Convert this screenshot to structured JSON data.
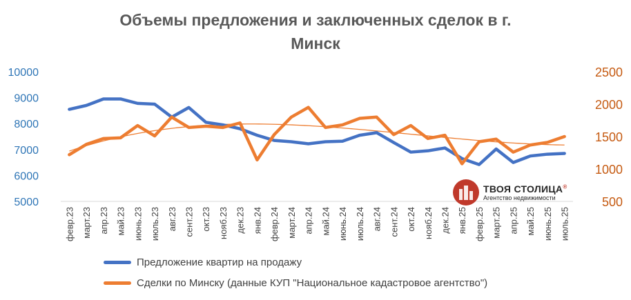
{
  "chart_data": {
    "type": "line",
    "title_line1": "Объемы предложения и заключенных сделок в г.",
    "title_line2": "Минск",
    "categories": [
      "февр.23",
      "март.23",
      "апр.23",
      "май.23",
      "июнь.23",
      "июль.23",
      "авг.23",
      "сент.23",
      "окт.23",
      "нояб.23",
      "дек.23",
      "янв.24",
      "февр.24",
      "март.24",
      "апр.24",
      "май.24",
      "июнь.24",
      "июль.24",
      "авг.24",
      "сент.24",
      "окт.24",
      "нояб.24",
      "дек.24",
      "янв.25",
      "февр.25",
      "март.25",
      "апр.25",
      "май.25",
      "июнь.25",
      "июль.25"
    ],
    "y_left": {
      "ticks": [
        "5000",
        "6000",
        "7000",
        "8000",
        "9000",
        "10000"
      ],
      "ylim": [
        5000,
        10000
      ]
    },
    "y_right": {
      "ticks": [
        "500",
        "1000",
        "1500",
        "2000",
        "2500"
      ],
      "ylim": [
        500,
        2500
      ]
    },
    "series": [
      {
        "name": "Предложение квартир на продажу",
        "axis": "left",
        "color": "#4472c4",
        "values": [
          8550,
          8700,
          8950,
          8950,
          8780,
          8750,
          8250,
          8620,
          8050,
          7950,
          7800,
          7550,
          7350,
          7300,
          7220,
          7300,
          7320,
          7550,
          7650,
          7270,
          6900,
          6950,
          7060,
          6650,
          6420,
          7020,
          6500,
          6750,
          6820,
          6850
        ]
      },
      {
        "name": "Сделки по Минску (данные КУП \"Национальное кадастровое агентство\")",
        "axis": "right",
        "color": "#ed7d31",
        "values": [
          1220,
          1380,
          1470,
          1480,
          1670,
          1510,
          1800,
          1640,
          1660,
          1640,
          1710,
          1140,
          1530,
          1800,
          1950,
          1640,
          1680,
          1780,
          1800,
          1530,
          1670,
          1470,
          1520,
          1080,
          1420,
          1460,
          1260,
          1370,
          1410,
          1500
        ]
      }
    ],
    "trendline": {
      "series": "Сделки по Минску (данные КУП \"Национальное кадастровое агентство\")",
      "type": "polynomial",
      "color": "#ed7d31"
    },
    "legend_position": "bottom",
    "grid": false
  },
  "logo": {
    "name": "ТВОЯ СТОЛИЦА",
    "sub": "Агентство недвижимости",
    "registered": "®"
  }
}
